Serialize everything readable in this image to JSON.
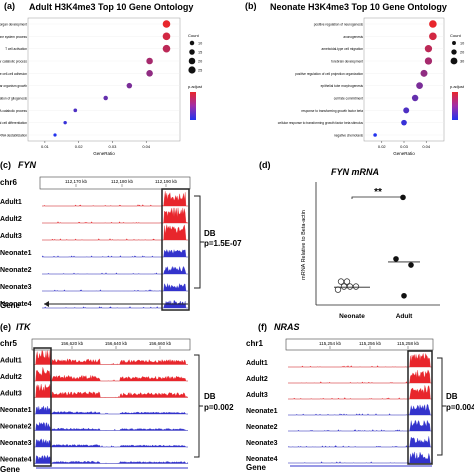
{
  "panels": {
    "a": {
      "letter": "(a)",
      "title": "Adult H3K4me3 Top 10 Gene Ontology",
      "terms": [
        "embryonic organ development",
        "negative regulation of immune system process",
        "T cell activation",
        "positive regulation of cellular catabolic process",
        "leukocyte cell-cell adhesion",
        "multicellular organism growth",
        "positive regulation of gliogenesis",
        "positive regulation of mRNA catabolic process",
        "positive regulation of glial cell differentiation",
        "RNA destabilization"
      ],
      "gene_ratio": [
        0.046,
        0.046,
        0.046,
        0.041,
        0.041,
        0.035,
        0.028,
        0.019,
        0.016,
        0.013
      ],
      "counts": [
        25,
        25,
        25,
        20,
        20,
        15,
        10,
        6,
        5,
        4
      ],
      "xticks": [
        "0.01",
        "0.02",
        "0.03",
        "0.04"
      ],
      "xlabel": "GeneRatio",
      "legend_count_title": "Count",
      "legend_counts": [
        "10",
        "15",
        "20",
        "25"
      ],
      "legend_padj_title": "p.adjust"
    },
    "b": {
      "letter": "(b)",
      "title": "Neonate H3K4me3 Top 10 Gene Ontology",
      "terms": [
        "positive regulation of neurogenesis",
        "axonogenesis",
        "ameboidal-type cell migration",
        "forebrain development",
        "positive regulation of cell projection organization",
        "epithelial tube morphogenesis",
        "cell fate commitment",
        "response to transforming growth factor beta",
        "cellular response to transforming growth factor beta stimulus",
        "negative chemotaxis"
      ],
      "gene_ratio": [
        0.043,
        0.043,
        0.041,
        0.041,
        0.039,
        0.037,
        0.035,
        0.031,
        0.03,
        0.017
      ],
      "counts": [
        35,
        35,
        33,
        33,
        31,
        29,
        27,
        24,
        22,
        8
      ],
      "xticks": [
        "0.02",
        "0.03",
        "0.04"
      ],
      "xlabel": "GeneRatio",
      "legend_count_title": "Count",
      "legend_counts": [
        "10",
        "20",
        "30"
      ],
      "legend_padj_title": "p.adjust"
    },
    "c": {
      "letter": "(c)",
      "gene": "FYN",
      "chrom": "chr6",
      "coords": [
        "112,170 kb",
        "112,180 kb",
        "112,190 kb"
      ],
      "tracks": [
        "Adult1",
        "Adult2",
        "Adult3",
        "Neonate1",
        "Neonate2",
        "Neonate3",
        "Neonate4"
      ],
      "gene_label": "Gene",
      "db_label": "DB",
      "pvalue": "p=1.5E-07"
    },
    "d": {
      "letter": "(d)",
      "title": "FYN mRNA",
      "ylabel": "mRNA Relative to Beta-actin",
      "sig": "**",
      "groups": [
        "Neonate",
        "Adult"
      ],
      "neonate_values": [
        0.05,
        0.06,
        0.06,
        0.06,
        0.06,
        0.06
      ],
      "adult_values": [
        0.35,
        0.15,
        0.13,
        0.03
      ],
      "neonate_median": 0.058,
      "adult_median": 0.14,
      "ylim": [
        0,
        0.4
      ]
    },
    "e": {
      "letter": "(e)",
      "gene": "ITK",
      "chrom": "chr5",
      "coords": [
        "156,620 kb",
        "156,640 kb",
        "156,660 kb"
      ],
      "tracks": [
        "Adult1",
        "Adult2",
        "Adult3",
        "Neonate1",
        "Neonate2",
        "Neonate3",
        "Neonate4"
      ],
      "gene_label": "Gene",
      "db_label": "DB",
      "pvalue": "p=0.002"
    },
    "f": {
      "letter": "(f)",
      "gene": "NRAS",
      "chrom": "chr1",
      "coords": [
        "115,254 kb",
        "115,256 kb",
        "115,258 kb"
      ],
      "tracks": [
        "Adult1",
        "Adult2",
        "Adult3",
        "Neonate1",
        "Neonate2",
        "Neonate3",
        "Neonate4"
      ],
      "gene_label": "Gene",
      "db_label": "DB",
      "pvalue": "p=0.004"
    }
  },
  "colors": {
    "adult_track": "#e8262c",
    "neonate_track": "#3333cc",
    "dot_high": "#e8262c",
    "dot_low": "#2233ee",
    "frame": "#222222"
  }
}
